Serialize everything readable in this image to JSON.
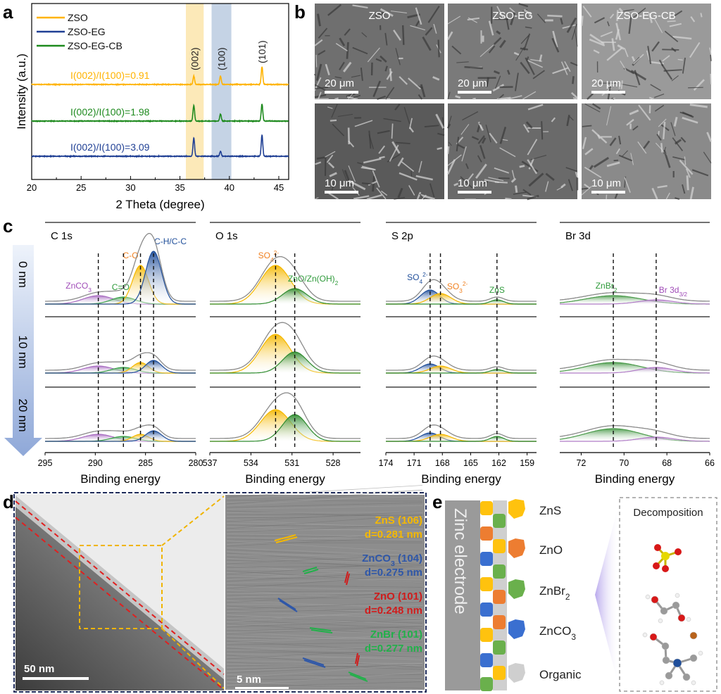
{
  "figure": {
    "panel_labels": [
      "a",
      "b",
      "c",
      "d",
      "e"
    ]
  },
  "panel_b": {
    "images": [
      {
        "label": "ZSO",
        "scale": "20 μm"
      },
      {
        "label": "ZSO-EG",
        "scale": "20 μm"
      },
      {
        "label": "ZSO-EG-CB",
        "scale": "20 μm"
      },
      {
        "label": "",
        "scale": "10 μm"
      },
      {
        "label": "",
        "scale": "10 μm"
      },
      {
        "label": "",
        "scale": "10 μm"
      }
    ]
  },
  "panel_c": {
    "depths": [
      "0 nm",
      "10 nm",
      "20 nm"
    ]
  },
  "panel_d": {
    "left_scale": "50 nm",
    "right_scale": "5 nm",
    "annotations": [
      {
        "parts": [
          [
            "ZnS (106)",
            ""
          ]
        ],
        "d": "d=0.281 nm",
        "color": "#f5b800"
      },
      {
        "parts": [
          [
            "ZnCO",
            ""
          ],
          [
            "3",
            "sub"
          ],
          [
            " (104)",
            ""
          ]
        ],
        "d": "d=0.275 nm",
        "color": "#2f57a8"
      },
      {
        "parts": [
          [
            "ZnO (101)",
            ""
          ]
        ],
        "d": "d=0.248 nm",
        "color": "#d01c1c"
      },
      {
        "parts": [
          [
            "ZnBr (101)",
            ""
          ]
        ],
        "d": "d=0.277 nm",
        "color": "#22b04a"
      }
    ]
  },
  "panel_e": {
    "electrode_label": "Zinc electrode",
    "decomposition_title": "Decomposition",
    "legend": [
      {
        "parts": [
          [
            "ZnS",
            ""
          ]
        ],
        "color": "#ffc20e"
      },
      {
        "parts": [
          [
            "ZnO",
            ""
          ]
        ],
        "color": "#ed7d31"
      },
      {
        "parts": [
          [
            "ZnBr",
            ""
          ],
          [
            "2",
            "sub"
          ]
        ],
        "color": "#6ab04c"
      },
      {
        "parts": [
          [
            "ZnCO",
            ""
          ],
          [
            "3",
            "sub"
          ]
        ],
        "color": "#3a6fd0"
      },
      {
        "parts": [
          [
            "Organic",
            ""
          ]
        ],
        "color": "#cfcfcf"
      }
    ]
  },
  "chart_data": [
    {
      "type": "line",
      "panel": "a",
      "title": "",
      "xlabel": "2 Theta (degree)",
      "ylabel": "Intensity (a.u.)",
      "xlim": [
        20,
        46
      ],
      "xticks": [
        20,
        25,
        30,
        35,
        40,
        45
      ],
      "legend_position": "top-left",
      "legend": [
        {
          "name": "ZSO",
          "color": "#ffb300"
        },
        {
          "name": "ZSO-EG",
          "color": "#1f3f94"
        },
        {
          "name": "ZSO-EG-CB",
          "color": "#1e8a1e"
        }
      ],
      "series": [
        {
          "name": "ZSO",
          "color": "#ffb300",
          "ratio_label": "I(002)/I(100)=0.91",
          "peaks": [
            [
              36.4,
              12
            ],
            [
              39.1,
              12
            ],
            [
              43.3,
              25
            ]
          ]
        },
        {
          "name": "ZSO-EG-CB",
          "color": "#1e8a1e",
          "ratio_label": "I(002)/I(100)=1.98",
          "peaks": [
            [
              36.4,
              22
            ],
            [
              39.1,
              10
            ],
            [
              43.3,
              24
            ]
          ]
        },
        {
          "name": "ZSO-EG",
          "color": "#1f3f94",
          "ratio_label": "I(002)/I(100)=3.09",
          "peaks": [
            [
              36.4,
              26
            ],
            [
              39.1,
              7
            ],
            [
              43.3,
              30
            ]
          ]
        }
      ],
      "highlight_bands": [
        {
          "label": "(002)",
          "range": [
            35.6,
            37.4
          ],
          "color": "#fbe3a6"
        },
        {
          "label": "(100)",
          "range": [
            38.2,
            40.2
          ],
          "color": "#b7c8df"
        }
      ],
      "peak_labels": [
        {
          "label": "(101)",
          "x": 43.3
        }
      ]
    },
    {
      "type": "area",
      "panel": "c",
      "xlabel": "Binding energy",
      "depths": [
        "0 nm",
        "10 nm",
        "20 nm"
      ],
      "subplots": [
        {
          "title": "C 1s",
          "xlim": [
            295,
            280
          ],
          "xticks": [
            295,
            290,
            285,
            280
          ],
          "components": [
            {
              "parts": [
                [
                  "ZnCO",
                  ""
                ],
                [
                  "3",
                  "sub"
                ]
              ],
              "center": 289.7,
              "width": 1.5,
              "color": "#a86cc1",
              "label_color": "#a04cb8",
              "amplitudes": [
                0.12,
                0.1,
                0.1
              ]
            },
            {
              "parts": [
                [
                  "C=O",
                  ""
                ]
              ],
              "center": 287.2,
              "width": 1.2,
              "color": "#3aa04a",
              "label_color": "#2e9a3a",
              "amplitudes": [
                0.1,
                0.08,
                0.07
              ]
            },
            {
              "parts": [
                [
                  "C-O",
                  ""
                ]
              ],
              "center": 285.5,
              "width": 0.8,
              "color": "#f5b800",
              "label_color": "#f08020",
              "amplitudes": [
                0.55,
                0.15,
                0.1
              ]
            },
            {
              "parts": [
                [
                  "C-H/C-C",
                  ""
                ]
              ],
              "center": 284.2,
              "width": 0.8,
              "color": "#1f4e9a",
              "label_color": "#1f4e9a",
              "amplitudes": [
                0.75,
                0.18,
                0.15
              ]
            }
          ]
        },
        {
          "title": "O 1s",
          "xlim": [
            537,
            526
          ],
          "xticks": [
            537,
            534,
            531,
            528
          ],
          "components": [
            {
              "parts": [
                [
                  "SO",
                  ""
                ],
                [
                  "4",
                  "sub"
                ],
                [
                  "2-",
                  "sup"
                ]
              ],
              "center": 532.2,
              "width": 1.1,
              "color": "#f5b800",
              "label_color": "#f08020",
              "amplitudes": [
                0.55,
                0.55,
                0.45
              ]
            },
            {
              "parts": [
                [
                  "ZnO/Zn(OH)",
                  ""
                ],
                [
                  "2",
                  "sub"
                ]
              ],
              "center": 530.8,
              "width": 0.9,
              "color": "#2e8b2e",
              "label_color": "#2e9a3a",
              "amplitudes": [
                0.22,
                0.3,
                0.38
              ]
            }
          ]
        },
        {
          "title": "S 2p",
          "xlim": [
            174,
            158
          ],
          "xticks": [
            174,
            171,
            168,
            165,
            162,
            159
          ],
          "components": [
            {
              "parts": [
                [
                  "SO",
                  ""
                ],
                [
                  "4",
                  "sub"
                ],
                [
                  "2-",
                  "sup"
                ]
              ],
              "center": 169.3,
              "width": 1.0,
              "color": "#1f4e9a",
              "label_color": "#1f4e9a",
              "amplitudes": [
                0.2,
                0.13,
                0.12
              ]
            },
            {
              "parts": [
                [
                  "SO",
                  ""
                ],
                [
                  "3",
                  "sub"
                ],
                [
                  "2-",
                  "sup"
                ]
              ],
              "center": 168.2,
              "width": 1.1,
              "color": "#f5b800",
              "label_color": "#f08020",
              "amplitudes": [
                0.15,
                0.1,
                0.1
              ]
            },
            {
              "parts": [
                [
                  "ZnS",
                  ""
                ]
              ],
              "center": 162.2,
              "width": 0.7,
              "color": "#2e8b2e",
              "label_color": "#2e9a3a",
              "amplitudes": [
                0.06,
                0.05,
                0.07
              ]
            }
          ]
        },
        {
          "title": "Br 3d",
          "xlim": [
            73,
            66
          ],
          "xticks": [
            72,
            70,
            68,
            66
          ],
          "components": [
            {
              "parts": [
                [
                  "ZnBr",
                  ""
                ],
                [
                  "2",
                  "sub"
                ]
              ],
              "center": 70.5,
              "width": 1.3,
              "color": "#4a9a4a",
              "label_color": "#2e9a3a",
              "amplitudes": [
                0.12,
                0.15,
                0.18
              ]
            },
            {
              "parts": [
                [
                  "Br 3d",
                  ""
                ],
                [
                  "3/2",
                  "sub"
                ]
              ],
              "center": 68.5,
              "width": 0.8,
              "color": "#b07cc6",
              "label_color": "#a04cb8",
              "amplitudes": [
                0.06,
                0.08,
                0.06
              ]
            }
          ]
        }
      ]
    }
  ]
}
